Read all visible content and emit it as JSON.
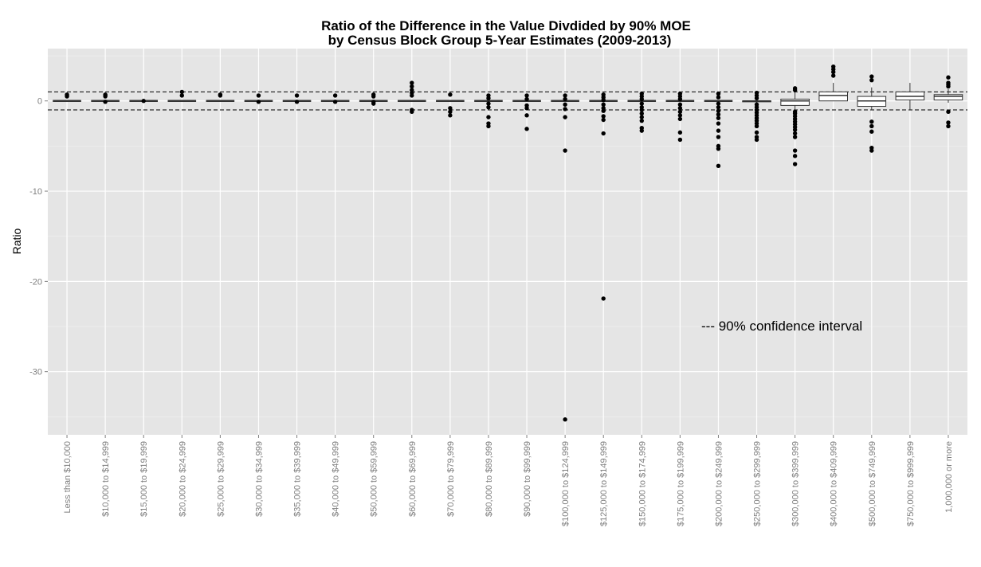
{
  "chart_data": {
    "type": "boxplot",
    "title": "Ratio of the Difference in the Value Divdided by 90% MOE",
    "subtitle": "by Census Block Group 5-Year Estimates (2009-2013)",
    "xlabel": "",
    "ylabel": "Ratio",
    "ylim": [
      -37,
      5.8
    ],
    "y_ticks": [
      0,
      -10,
      -20,
      -30
    ],
    "reference_lines": [
      1,
      -1
    ],
    "annotation": "--- 90% confidence interval",
    "grid": true,
    "categories": [
      "Less than $10,000",
      "$10,000 to $14,999",
      "$15,000 to $19,999",
      "$20,000 to $24,999",
      "$25,000 to $29,999",
      "$30,000 to $34,999",
      "$35,000 to $39,999",
      "$40,000 to $49,999",
      "$50,000 to $59,999",
      "$60,000 to $69,999",
      "$70,000 to $79,999",
      "$80,000 to $89,999",
      "$90,000 to $99,999",
      "$100,000 to $124,999",
      "$125,000 to $149,999",
      "$150,000 to $174,999",
      "$175,000 to $199,999",
      "$200,000 to $249,999",
      "$250,000 to $299,999",
      "$300,000 to $399,999",
      "$400,000 to $409,999",
      "$500,000 to $749,999",
      "$750,000 to $999,999",
      "1,000,000 or more"
    ],
    "boxes": [
      {
        "q1": 0,
        "median": 0,
        "q3": 0,
        "whisker_low": 0,
        "whisker_high": 0,
        "outliers": [
          0.6,
          0.5,
          0.7
        ]
      },
      {
        "q1": 0,
        "median": 0,
        "q3": 0,
        "whisker_low": 0,
        "whisker_high": 0,
        "outliers": [
          0.6,
          0.7,
          0.5,
          -0.1
        ]
      },
      {
        "q1": 0,
        "median": 0,
        "q3": 0,
        "whisker_low": 0,
        "whisker_high": 0,
        "outliers": [
          0
        ]
      },
      {
        "q1": 0,
        "median": 0,
        "q3": 0,
        "whisker_low": 0,
        "whisker_high": 0,
        "outliers": [
          1.0,
          0.6
        ]
      },
      {
        "q1": 0,
        "median": 0,
        "q3": 0,
        "whisker_low": 0,
        "whisker_high": 0,
        "outliers": [
          0.7,
          0.6
        ]
      },
      {
        "q1": 0,
        "median": 0,
        "q3": 0,
        "whisker_low": 0,
        "whisker_high": 0,
        "outliers": [
          0.6,
          -0.1
        ]
      },
      {
        "q1": 0,
        "median": 0,
        "q3": 0,
        "whisker_low": 0,
        "whisker_high": 0,
        "outliers": [
          0.6,
          -0.1
        ]
      },
      {
        "q1": 0,
        "median": 0,
        "q3": 0,
        "whisker_low": 0,
        "whisker_high": 0,
        "outliers": [
          0.6,
          -0.1
        ]
      },
      {
        "q1": 0,
        "median": 0,
        "q3": 0,
        "whisker_low": 0,
        "whisker_high": 0,
        "outliers": [
          0.7,
          0.5,
          -0.1,
          -0.3
        ]
      },
      {
        "q1": 0,
        "median": 0,
        "q3": 0,
        "whisker_low": 0,
        "whisker_high": 0,
        "outliers": [
          2.0,
          1.6,
          1.2,
          0.9,
          0.6,
          -1.0,
          -1.2
        ]
      },
      {
        "q1": 0,
        "median": 0,
        "q3": 0,
        "whisker_low": 0,
        "whisker_high": 0,
        "outliers": [
          0.7,
          -0.8,
          -1.2,
          -1.6
        ]
      },
      {
        "q1": 0,
        "median": 0,
        "q3": 0,
        "whisker_low": 0,
        "whisker_high": 0,
        "outliers": [
          0.6,
          0.3,
          -0.3,
          -0.7,
          -1.8,
          -2.5,
          -2.8
        ]
      },
      {
        "q1": 0,
        "median": 0,
        "q3": 0,
        "whisker_low": 0,
        "whisker_high": 0,
        "outliers": [
          0.6,
          0.2,
          -0.5,
          -0.8,
          -1.6,
          -3.1
        ]
      },
      {
        "q1": 0,
        "median": 0,
        "q3": 0,
        "whisker_low": 0,
        "whisker_high": 0,
        "outliers": [
          0.6,
          0.2,
          -0.4,
          -0.9,
          -1.8,
          -5.5,
          -35.3
        ]
      },
      {
        "q1": 0,
        "median": 0,
        "q3": 0,
        "whisker_low": 0,
        "whisker_high": 0,
        "outliers": [
          0.7,
          0.4,
          0.1,
          -0.4,
          -0.8,
          -1.1,
          -1.7,
          -2.1,
          -3.6,
          -21.9
        ]
      },
      {
        "q1": 0,
        "median": 0,
        "q3": 0,
        "whisker_low": 0,
        "whisker_high": 0,
        "outliers": [
          0.8,
          0.5,
          0.2,
          -0.3,
          -0.7,
          -1.0,
          -1.4,
          -1.8,
          -2.2,
          -3.0,
          -3.3
        ]
      },
      {
        "q1": 0,
        "median": 0,
        "q3": 0,
        "whisker_low": 0,
        "whisker_high": 0,
        "outliers": [
          0.8,
          0.5,
          0.2,
          -0.4,
          -0.8,
          -1.2,
          -1.6,
          -2.0,
          -3.5,
          -4.3
        ]
      },
      {
        "q1": 0,
        "median": 0,
        "q3": 0,
        "whisker_low": 0,
        "whisker_high": 0,
        "outliers": [
          0.8,
          0.4,
          -0.3,
          -0.7,
          -1.1,
          -1.5,
          -1.9,
          -2.5,
          -3.3,
          -4.0,
          -5.0,
          -5.3,
          -7.2
        ]
      },
      {
        "q1": -0.1,
        "median": 0,
        "q3": 0,
        "whisker_low": -0.2,
        "whisker_high": 0.1,
        "outliers": [
          0.9,
          0.6,
          0.3,
          -0.4,
          -0.7,
          -1.0,
          -1.3,
          -1.6,
          -1.9,
          -2.2,
          -2.5,
          -2.8,
          -3.5,
          -4.0,
          -4.3
        ]
      },
      {
        "q1": -0.5,
        "median": 0,
        "q3": 0.2,
        "whisker_low": -1.0,
        "whisker_high": 1.0,
        "outliers": [
          1.4,
          1.2,
          -1.2,
          -1.4,
          -1.7,
          -2.0,
          -2.3,
          -2.6,
          -2.9,
          -3.2,
          -3.6,
          -4.0,
          -5.5,
          -6.1,
          -7.0
        ]
      },
      {
        "q1": 0,
        "median": 0.6,
        "q3": 1.0,
        "whisker_low": 0,
        "whisker_high": 2.0,
        "outliers": [
          3.8,
          3.5,
          3.2,
          2.8
        ]
      },
      {
        "q1": -0.6,
        "median": 0,
        "q3": 0.5,
        "whisker_low": -1.0,
        "whisker_high": 1.5,
        "outliers": [
          2.7,
          2.3,
          -2.3,
          -2.8,
          -3.4,
          -5.2,
          -5.5
        ]
      },
      {
        "q1": 0.1,
        "median": 0.5,
        "q3": 1.0,
        "whisker_low": -1.0,
        "whisker_high": 2.0,
        "outliers": []
      },
      {
        "q1": 0.1,
        "median": 0.5,
        "q3": 0.7,
        "whisker_low": -0.2,
        "whisker_high": 1.3,
        "outliers": [
          2.6,
          2.0,
          1.8,
          1.6,
          -1.2,
          -2.4,
          -2.8
        ]
      }
    ]
  }
}
